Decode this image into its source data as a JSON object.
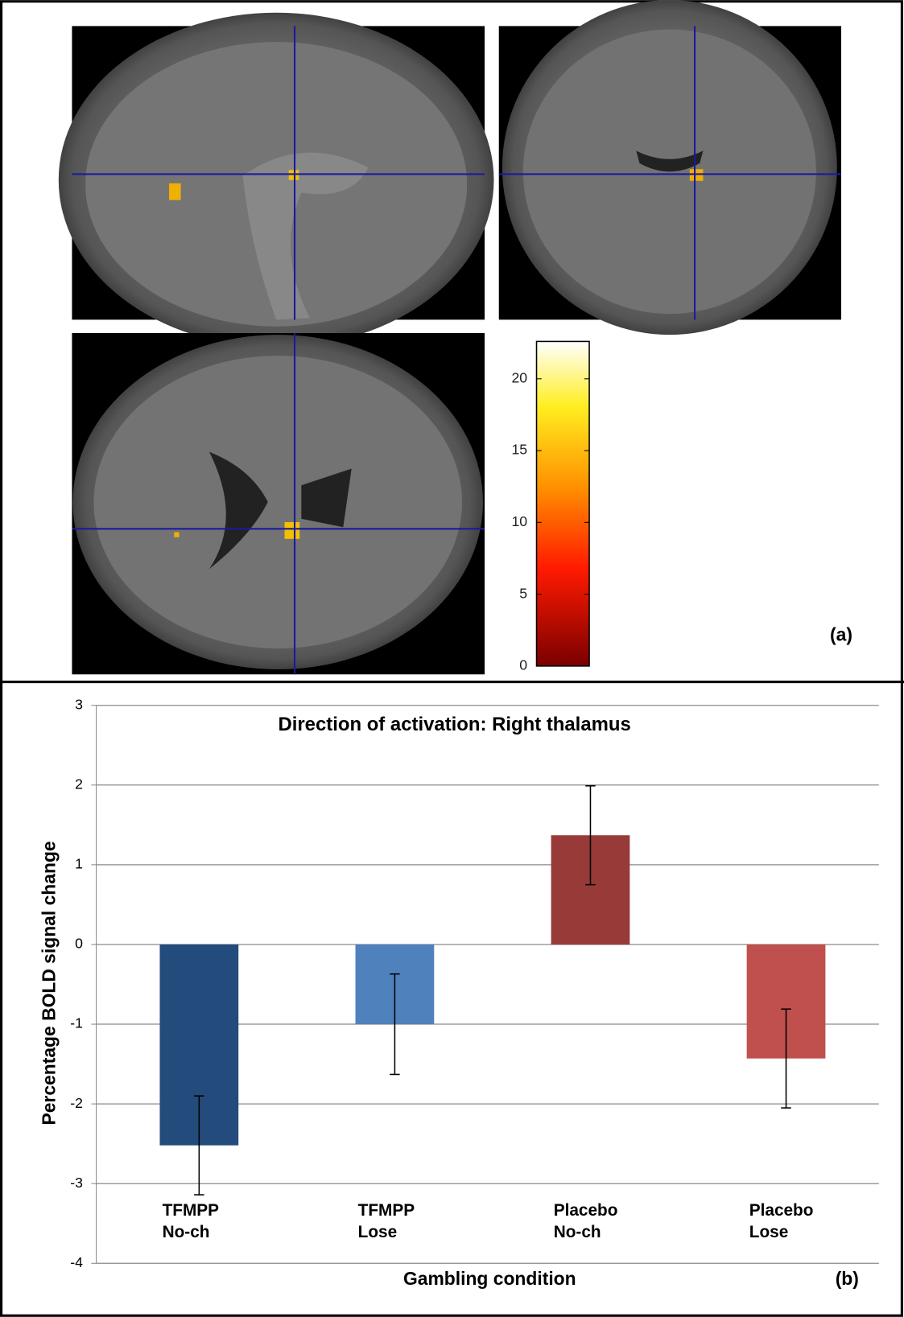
{
  "figure_a": {
    "label": "(a)",
    "colorbar": {
      "type": "colorbar",
      "ylim": [
        0,
        22.6
      ],
      "yticks": [
        0,
        5,
        10,
        15,
        20
      ]
    }
  },
  "chart_data": {
    "type": "bar",
    "title": "Direction of activation: Right thalamus",
    "x_label": "Gambling condition",
    "y_label": "Percentage BOLD signal change",
    "panel_label": "(b)",
    "categories": [
      "TFMPP\nNo-ch",
      "TFMPP\nLose",
      "Placebo\nNo-ch",
      "Placebo\nLose"
    ],
    "values": [
      -2.52,
      -1.0,
      1.37,
      -1.43
    ],
    "errors": [
      0.62,
      0.63,
      0.62,
      0.62
    ],
    "colors": [
      "#234b7c",
      "#4f81bd",
      "#973a38",
      "#c0504d"
    ],
    "ylim": [
      -4,
      3
    ],
    "yticks": [
      -4,
      -3,
      -2,
      -1,
      0,
      1,
      2,
      3
    ],
    "grid": true
  }
}
